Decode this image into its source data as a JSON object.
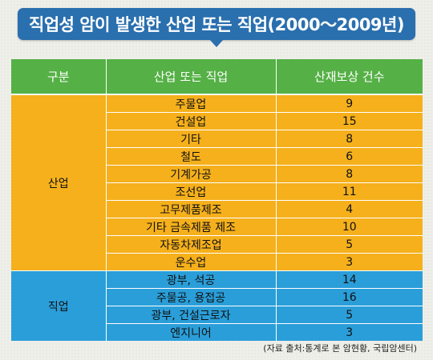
{
  "title": "직업성 암이 발생한 산업 또는 직업(2000〜2009년)",
  "headers": [
    "구분",
    "산업 또는 직업",
    "산재보상 건수"
  ],
  "groups": [
    {
      "label": "산업",
      "rows": [
        {
          "name": "주물업",
          "count": "9"
        },
        {
          "name": "건설업",
          "count": "15"
        },
        {
          "name": "기타",
          "count": "8"
        },
        {
          "name": "철도",
          "count": "6"
        },
        {
          "name": "기계가공",
          "count": "8"
        },
        {
          "name": "조선업",
          "count": "11"
        },
        {
          "name": "고무제품제조",
          "count": "4"
        },
        {
          "name": "기타 금속제품 제조",
          "count": "10"
        },
        {
          "name": "자동차제조업",
          "count": "5"
        },
        {
          "name": "운수업",
          "count": "3"
        }
      ]
    },
    {
      "label": "직업",
      "rows": [
        {
          "name": "광부, 석공",
          "count": "14"
        },
        {
          "name": "주물공, 용접공",
          "count": "16"
        },
        {
          "name": "광부, 건설근로자",
          "count": "5"
        },
        {
          "name": "엔지니어",
          "count": "3"
        }
      ]
    }
  ],
  "source": "(자료 출처:통계로 본 암현황, 국립암센터)",
  "colors": {
    "title_bg": "#2a6fae",
    "header_bg": "#55b046",
    "industry_bg": "#f5b01c",
    "occupation_bg": "#2a9ed9"
  }
}
